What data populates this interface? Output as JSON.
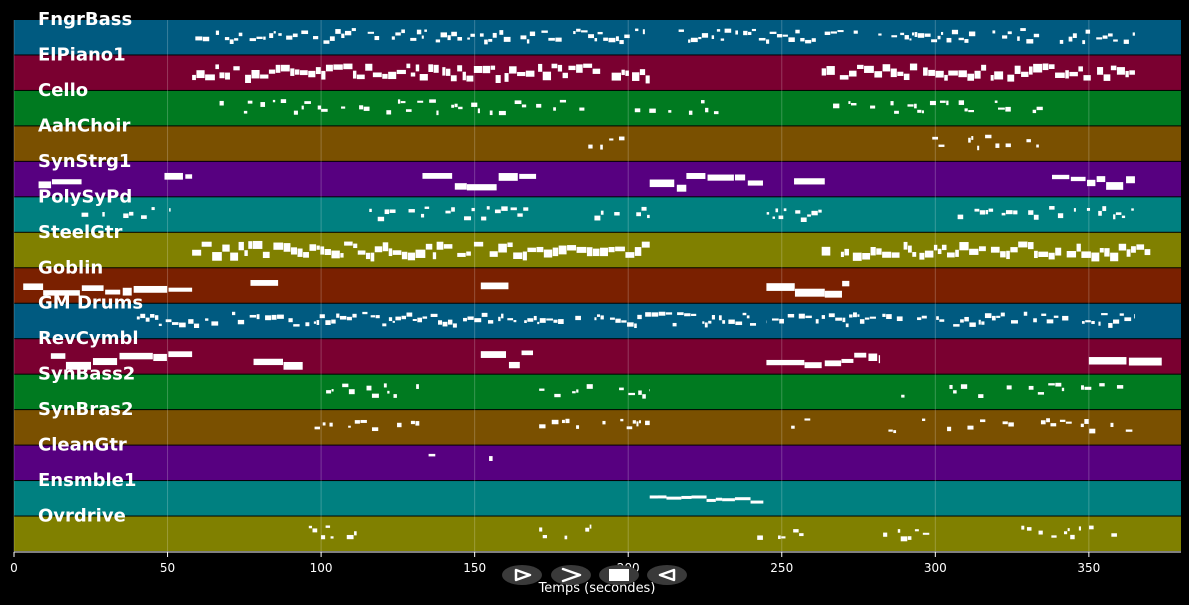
{
  "chart_data": {
    "type": "piano-roll",
    "xlabel": "Temps (secondes)",
    "xlim": [
      0,
      380
    ],
    "xticks": [
      0,
      50,
      100,
      150,
      200,
      250,
      300,
      350
    ],
    "grid": true,
    "tracks": [
      {
        "name": "FngrBass",
        "color": "#005a80",
        "segments": [
          [
            58,
            365
          ]
        ],
        "style": "notes"
      },
      {
        "name": "ElPiano1",
        "color": "#7a0030",
        "segments": [
          [
            58,
            207
          ],
          [
            263,
            365
          ]
        ],
        "style": "dense"
      },
      {
        "name": "Cello",
        "color": "#007a20",
        "segments": [
          [
            58,
            100
          ],
          [
            100,
            240
          ],
          [
            263,
            335
          ]
        ],
        "style": "sparse"
      },
      {
        "name": "AahChoir",
        "color": "#7a5000",
        "segments": [
          [
            187,
            202
          ],
          [
            299,
            335
          ]
        ],
        "style": "sparse"
      },
      {
        "name": "SynStrg1",
        "color": "#570080",
        "segments": [
          [
            8,
            22
          ],
          [
            49,
            58
          ],
          [
            133,
            170
          ],
          [
            207,
            244
          ],
          [
            254,
            264
          ],
          [
            338,
            365
          ]
        ],
        "style": "block"
      },
      {
        "name": "PolySyPd",
        "color": "#008080",
        "segments": [
          [
            22,
            51
          ],
          [
            114,
            170
          ],
          [
            189,
            207
          ],
          [
            244,
            263
          ],
          [
            301,
            365
          ]
        ],
        "style": "mixed"
      },
      {
        "name": "SteelGtr",
        "color": "#808000",
        "segments": [
          [
            58,
            207
          ],
          [
            263,
            370
          ]
        ],
        "style": "dense"
      },
      {
        "name": "Goblin",
        "color": "#7a2000",
        "segments": [
          [
            3,
            58
          ],
          [
            77,
            86
          ],
          [
            152,
            161
          ],
          [
            245,
            264
          ],
          [
            264,
            272
          ]
        ],
        "style": "block"
      },
      {
        "name": "GM Drums",
        "color": "#005a80",
        "segments": [
          [
            40,
            245
          ],
          [
            245,
            262
          ],
          [
            263,
            365
          ]
        ],
        "style": "notes"
      },
      {
        "name": "RevCymbl",
        "color": "#7a0030",
        "segments": [
          [
            12,
            58
          ],
          [
            78,
            94
          ],
          [
            152,
            169
          ],
          [
            245,
            263
          ],
          [
            264,
            282
          ],
          [
            350,
            374
          ]
        ],
        "style": "block"
      },
      {
        "name": "SynBass2",
        "color": "#007a20",
        "segments": [
          [
            98,
            132
          ],
          [
            171,
            207
          ],
          [
            283,
            364
          ]
        ],
        "style": "sparse"
      },
      {
        "name": "SynBras2",
        "color": "#7a5000",
        "segments": [
          [
            96,
            132
          ],
          [
            171,
            207
          ],
          [
            245,
            263
          ],
          [
            283,
            366
          ]
        ],
        "style": "sparse"
      },
      {
        "name": "CleanGtr",
        "color": "#570080",
        "segments": [
          [
            135,
            140
          ],
          [
            154,
            158
          ]
        ],
        "style": "sparse"
      },
      {
        "name": "Ensmble1",
        "color": "#008080",
        "segments": [
          [
            207,
            244
          ]
        ],
        "style": "line"
      },
      {
        "name": "Ovrdrive",
        "color": "#808000",
        "segments": [
          [
            96,
            115
          ],
          [
            171,
            188
          ],
          [
            242,
            263
          ],
          [
            283,
            300
          ],
          [
            328,
            362
          ]
        ],
        "style": "sparse"
      }
    ]
  },
  "player_controls": {
    "play_icon": "play-icon",
    "next_icon": "fast-forward-icon",
    "stop_icon": "stop-icon",
    "prev_icon": "rewind-icon"
  }
}
